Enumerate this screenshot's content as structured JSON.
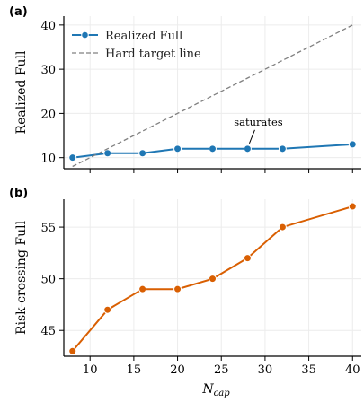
{
  "chart_data": [
    {
      "panel_label": "(a)",
      "type": "line",
      "ylabel": "Realized Full",
      "xlim": [
        7,
        41
      ],
      "ylim": [
        7.5,
        42
      ],
      "yticks": [
        10,
        20,
        30,
        40
      ],
      "series": [
        {
          "name": "Realized Full",
          "style": "solid-marker",
          "color": "#1f77b4",
          "x": [
            8,
            12,
            16,
            20,
            24,
            28,
            32,
            40
          ],
          "y": [
            10,
            11,
            11,
            12,
            12,
            12,
            12,
            13
          ]
        },
        {
          "name": "Hard target line",
          "style": "dashed",
          "color": "#808080",
          "x": [
            8,
            40
          ],
          "y": [
            8,
            40
          ]
        }
      ],
      "annotation": {
        "text": "saturates",
        "x": 28,
        "y": 12
      },
      "legend": "top-left"
    },
    {
      "panel_label": "(b)",
      "type": "line",
      "xlabel": "N",
      "xlabel_sub": "cap",
      "ylabel": "Risk-crossing Full",
      "xlim": [
        7,
        41
      ],
      "ylim": [
        42.5,
        57.7
      ],
      "xticks": [
        10,
        15,
        20,
        25,
        30,
        35,
        40
      ],
      "yticks": [
        45,
        50,
        55
      ],
      "series": [
        {
          "color": "#d95f02",
          "x": [
            8,
            12,
            16,
            20,
            24,
            28,
            32,
            40
          ],
          "y": [
            43,
            47,
            49,
            49,
            50,
            52,
            55,
            57
          ]
        }
      ]
    }
  ]
}
